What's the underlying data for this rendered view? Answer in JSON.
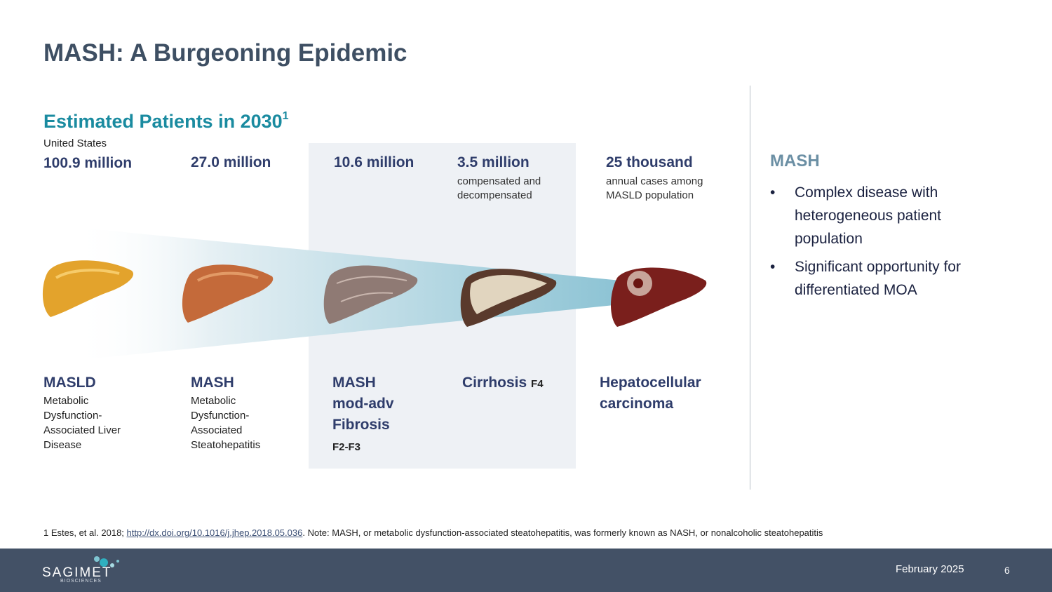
{
  "slide": {
    "title": "MASH: A Burgeoning Epidemic",
    "page_number": "6",
    "date": "February 2025"
  },
  "estimate": {
    "heading": "Estimated Patients in 2030",
    "footnote_mark": "1",
    "region": "United States"
  },
  "stats": [
    {
      "value": "100.9 million",
      "note": ""
    },
    {
      "value": "27.0 million",
      "note": ""
    },
    {
      "value": "10.6 million",
      "note": ""
    },
    {
      "value": "3.5 million",
      "note": "compensated and decompensated"
    },
    {
      "value": "25 thousand",
      "note": "annual cases among MASLD population"
    }
  ],
  "stages": [
    {
      "name": "MASLD",
      "grade": "",
      "description": "Metabolic Dysfunction-Associated Liver Disease"
    },
    {
      "name": "MASH",
      "grade": "",
      "description": "Metabolic Dysfunction-Associated Steatohepatitis"
    },
    {
      "name": "MASH mod-adv Fibrosis",
      "grade": "F2-F3",
      "description": ""
    },
    {
      "name": "Cirrhosis",
      "grade": "F4",
      "description": ""
    },
    {
      "name": "Hepatocellular carcinoma",
      "grade": "",
      "description": ""
    }
  ],
  "right_panel": {
    "heading": "MASH",
    "bullets": [
      "Complex disease with heterogeneous patient population",
      "Significant opportunity for differentiated MOA"
    ]
  },
  "footnote": {
    "prefix": "1 Estes, et al. 2018; ",
    "link": "http://dx.doi.org/10.1016/j.jhep.2018.05.036",
    "suffix": ". Note: MASH, or metabolic dysfunction-associated steatohepatitis, was formerly known as NASH, or nonalcoholic steatohepatitis"
  },
  "logo": {
    "name": "SAGIMET",
    "tagline": "BIOSCIENCES"
  },
  "colors": {
    "title": "#3e4f63",
    "accent": "#1a8ba0",
    "navy": "#2f3d6b",
    "bar": "#435166"
  }
}
